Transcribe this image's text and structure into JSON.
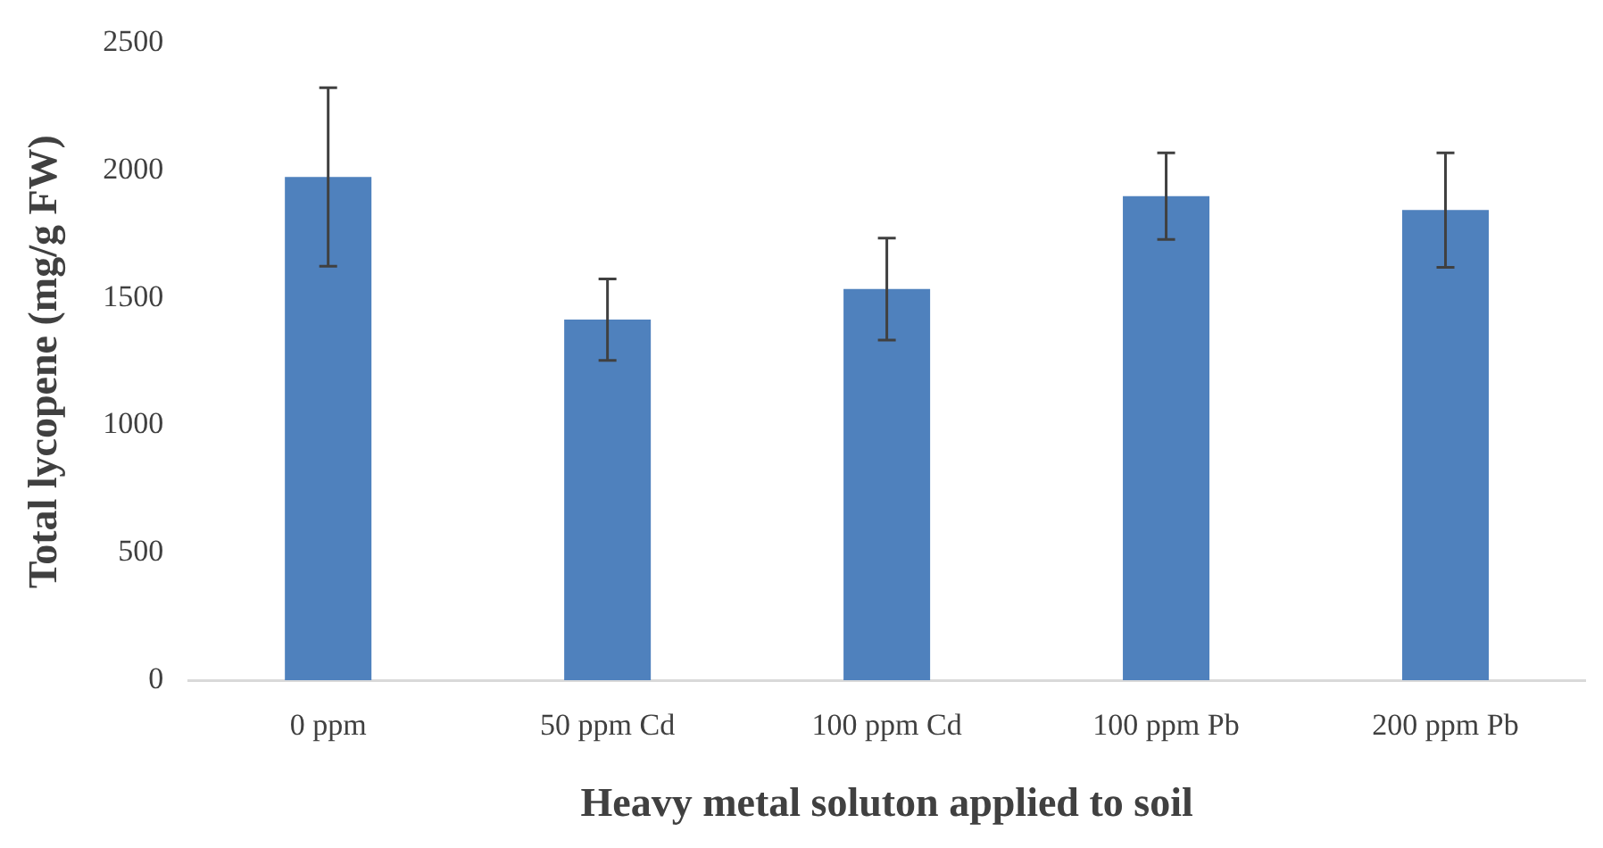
{
  "chart_data": {
    "type": "bar",
    "xlabel": "Heavy metal soluton applied to soil",
    "ylabel": "Total lycopene (mg/g FW)",
    "categories": [
      "0 ppm",
      "50 ppm Cd",
      "100 ppm Cd",
      "100 ppm Pb",
      "200 ppm Pb"
    ],
    "values": [
      1975,
      1415,
      1535,
      1900,
      1845
    ],
    "errors": [
      350,
      160,
      200,
      170,
      225
    ],
    "color": "#4f81bd",
    "ylim": [
      0,
      2500
    ],
    "yticks": [
      0,
      500,
      1000,
      1500,
      2000,
      2500
    ],
    "grid": false,
    "legend": false
  }
}
